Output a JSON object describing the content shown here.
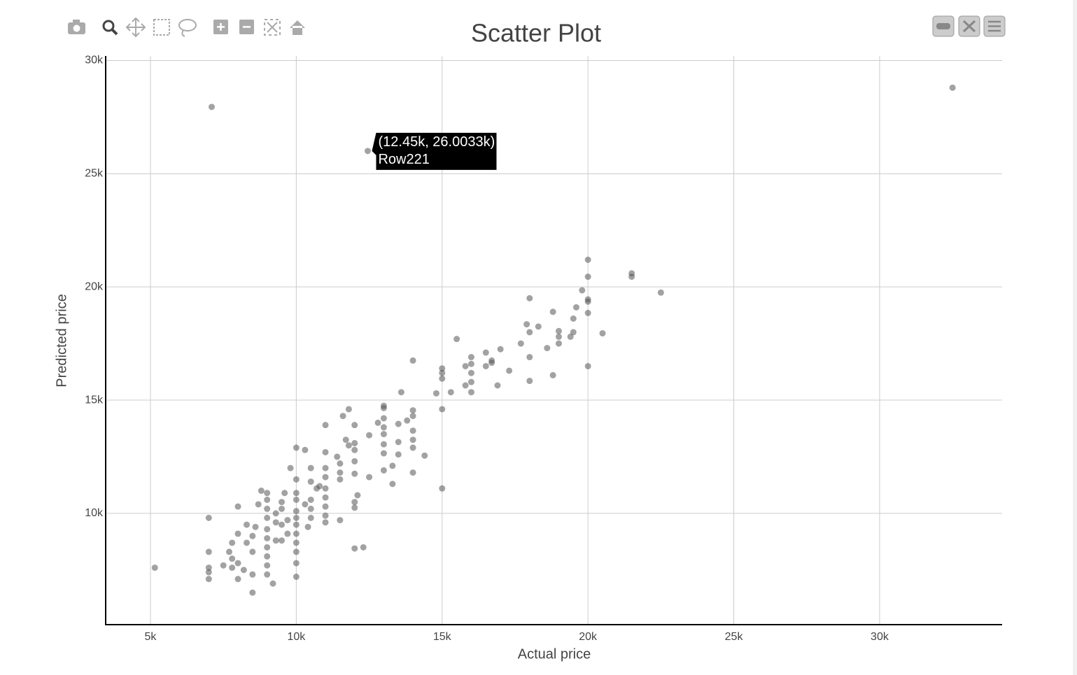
{
  "chart_data": {
    "type": "scatter",
    "title": "Scatter Plot",
    "x_label": "Actual price",
    "y_label": "Predicted price",
    "xlim": [
      3465,
      34200
    ],
    "ylim": [
      5085,
      30200
    ],
    "xticks": [
      {
        "value": 5000,
        "label": "5k"
      },
      {
        "value": 10000,
        "label": "10k"
      },
      {
        "value": 15000,
        "label": "15k"
      },
      {
        "value": 20000,
        "label": "20k"
      },
      {
        "value": 25000,
        "label": "25k"
      },
      {
        "value": 30000,
        "label": "30k"
      }
    ],
    "yticks": [
      {
        "value": 10000,
        "label": "10k"
      },
      {
        "value": 15000,
        "label": "15k"
      },
      {
        "value": 20000,
        "label": "20k"
      },
      {
        "value": 25000,
        "label": "25k"
      },
      {
        "value": 30000,
        "label": "30k"
      }
    ],
    "grid": true,
    "color": "#555555",
    "tooltip": {
      "lines": [
        "(12.45k, 26.0033k)",
        "Row221"
      ],
      "x": 12450,
      "y": 26003.3
    },
    "x": [
      32500,
      7100,
      12450,
      5150,
      22500,
      21500,
      21500,
      20000,
      20000,
      20000,
      20000,
      20000,
      20000,
      20500,
      19800,
      19600,
      19500,
      19500,
      19400,
      19000,
      19000,
      19000,
      18800,
      18800,
      18000,
      18000,
      18000,
      18000,
      18300,
      17900,
      17700,
      18600,
      17300,
      17000,
      16700,
      16700,
      16500,
      16500,
      16900,
      16000,
      16000,
      16000,
      16000,
      16000,
      15800,
      15800,
      15500,
      15300,
      15000,
      15000,
      15000,
      15000,
      15000,
      14800,
      14000,
      14000,
      14000,
      14000,
      14000,
      14000,
      14000,
      14400,
      13800,
      13600,
      13500,
      13500,
      13500,
      13300,
      13300,
      13000,
      13000,
      13000,
      13000,
      13000,
      13000,
      13000,
      13000,
      12800,
      12500,
      12500,
      12300,
      12100,
      12000,
      12000,
      12000,
      12000,
      12000,
      12000,
      12000,
      12000,
      11800,
      11800,
      11700,
      11600,
      11500,
      11500,
      11500,
      11500,
      11400,
      11000,
      11000,
      11000,
      11000,
      11000,
      11000,
      11000,
      11000,
      11000,
      10800,
      10700,
      10500,
      10500,
      10500,
      10500,
      10500,
      10400,
      10300,
      10300,
      10000,
      10000,
      10000,
      10000,
      10000,
      10000,
      10000,
      10000,
      10000,
      10000,
      10000,
      10000,
      9800,
      9700,
      9700,
      9600,
      9500,
      9500,
      9500,
      9500,
      9300,
      9300,
      9300,
      9200,
      9000,
      9000,
      9000,
      9000,
      9000,
      9000,
      9000,
      9000,
      9000,
      9000,
      8800,
      8700,
      8600,
      8500,
      8500,
      8500,
      8500,
      8300,
      8300,
      8200,
      8000,
      8000,
      8000,
      8000,
      7800,
      7800,
      7800,
      7700,
      7500,
      7000,
      7000,
      7000,
      7000,
      7000
    ],
    "y": [
      28800,
      27950,
      26003.3,
      7600,
      19750,
      20600,
      20450,
      21200,
      20450,
      19450,
      19350,
      18850,
      16500,
      17950,
      19850,
      19100,
      18600,
      18000,
      17800,
      18050,
      17800,
      17500,
      18900,
      16100,
      19500,
      18000,
      16900,
      15850,
      18250,
      18350,
      17500,
      17300,
      16300,
      17250,
      16750,
      16650,
      17100,
      16500,
      15650,
      16900,
      16600,
      16200,
      15800,
      15350,
      16500,
      15650,
      17700,
      15350,
      16400,
      16200,
      15950,
      14600,
      11100,
      15300,
      16750,
      14550,
      14300,
      13650,
      13250,
      12900,
      11800,
      12550,
      14100,
      15350,
      13950,
      13150,
      12600,
      12100,
      11300,
      14750,
      14650,
      14200,
      13800,
      13500,
      13050,
      12650,
      11900,
      14000,
      13450,
      11600,
      8500,
      10800,
      13900,
      13100,
      12800,
      12300,
      11750,
      10500,
      10250,
      8450,
      14600,
      13000,
      13250,
      14300,
      12200,
      11800,
      11500,
      9700,
      12500,
      13900,
      12700,
      12000,
      11600,
      11100,
      10700,
      10300,
      9900,
      9600,
      11200,
      11100,
      12000,
      11400,
      10600,
      10200,
      9800,
      9400,
      12800,
      10400,
      12900,
      11500,
      10900,
      10600,
      10100,
      9800,
      9500,
      9100,
      8700,
      8300,
      7800,
      7200,
      12000,
      9700,
      9100,
      10900,
      10500,
      10200,
      9500,
      8800,
      10000,
      9600,
      8800,
      6900,
      10900,
      10600,
      10200,
      9800,
      9300,
      8900,
      8500,
      8100,
      7700,
      7300,
      11000,
      10400,
      9400,
      9000,
      8300,
      7300,
      6500,
      9500,
      8700,
      7500,
      10300,
      9100,
      7800,
      7100,
      8700,
      8000,
      7600,
      8300,
      7700,
      9800,
      8300,
      7600,
      7400,
      7100
    ]
  }
}
